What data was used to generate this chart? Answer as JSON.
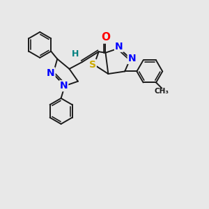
{
  "bg_color": "#e8e8e8",
  "atom_colors": {
    "N": "#0000ff",
    "O": "#ff0000",
    "S": "#ccaa00",
    "C": "#1a1a1a",
    "H": "#008080"
  },
  "bond_color": "#1a1a1a",
  "bond_width": 1.4,
  "font_size_atom": 10,
  "font_size_small": 9
}
